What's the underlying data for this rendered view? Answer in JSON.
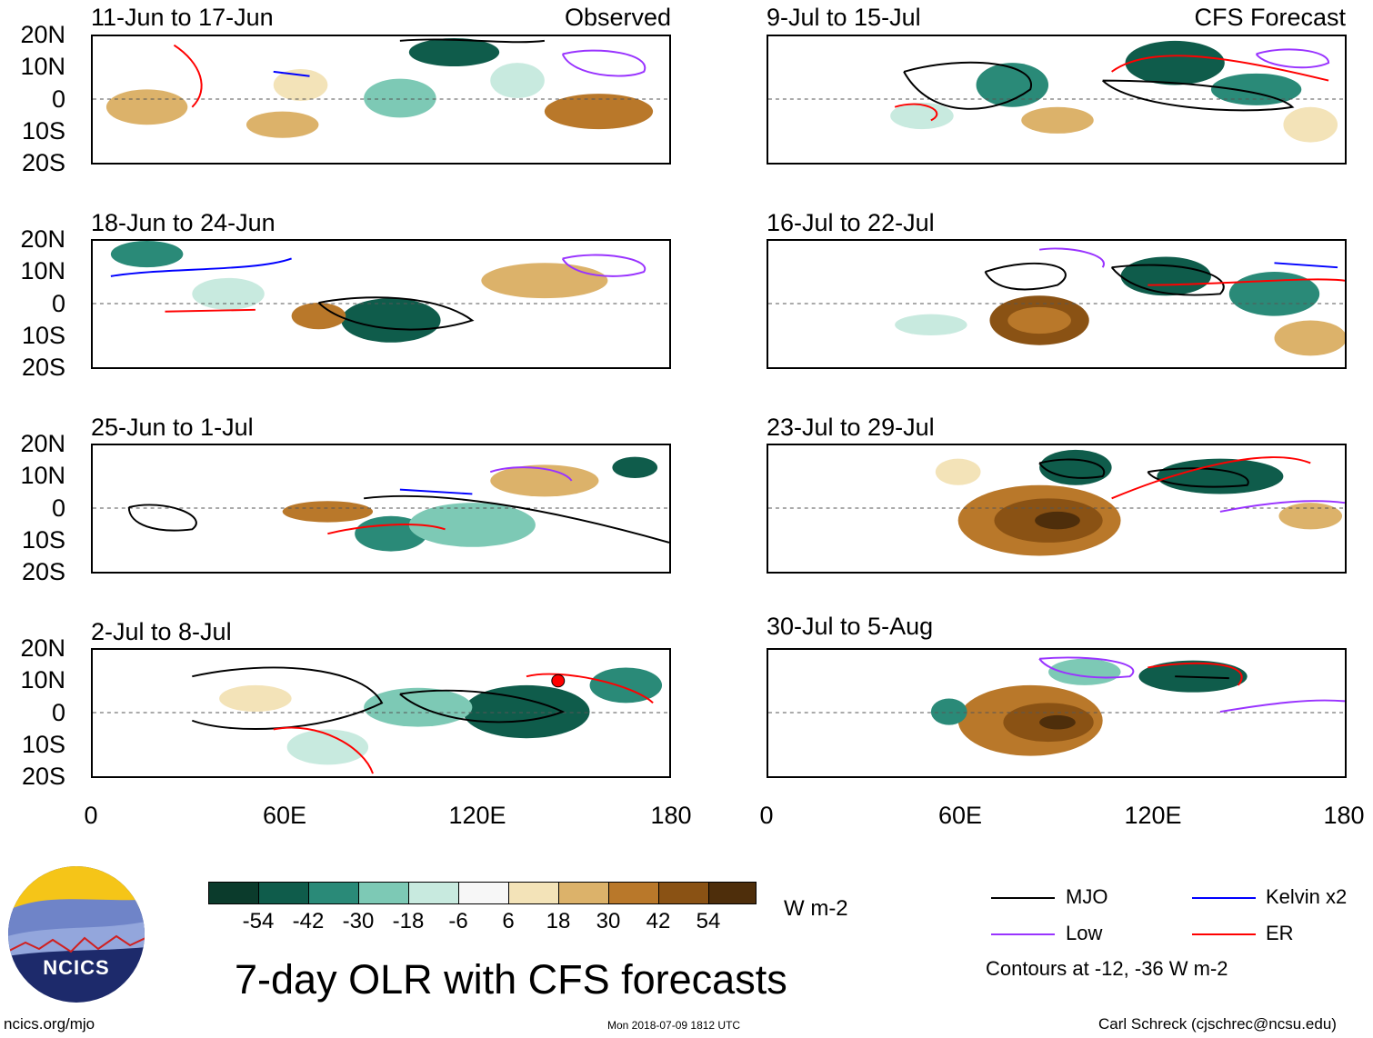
{
  "panels": [
    {
      "title": "11-Jun to 17-Jun",
      "tag": "Observed"
    },
    {
      "title": "9-Jul to 15-Jul",
      "tag": "CFS Forecast"
    },
    {
      "title": "18-Jun to 24-Jun",
      "tag": ""
    },
    {
      "title": "16-Jul to 22-Jul",
      "tag": ""
    },
    {
      "title": "25-Jun to 1-Jul",
      "tag": ""
    },
    {
      "title": "23-Jul to 29-Jul",
      "tag": ""
    },
    {
      "title": "2-Jul to 8-Jul",
      "tag": ""
    },
    {
      "title": "30-Jul to 5-Aug",
      "tag": ""
    }
  ],
  "lat_labels": [
    "20N",
    "10N",
    "0",
    "10S",
    "20S"
  ],
  "lon_labels": [
    "0",
    "60E",
    "120E",
    "180"
  ],
  "colorbar": {
    "unit": "W m-2",
    "ticks": [
      "-54",
      "-42",
      "-30",
      "-18",
      "-6",
      "6",
      "18",
      "30",
      "42",
      "54"
    ],
    "colors": [
      "#0b3b2c",
      "#0f5c4b",
      "#2a8a78",
      "#7dc9b5",
      "#c8eadf",
      "#f7f7f7",
      "#f3e3b8",
      "#dcb26a",
      "#b9782a",
      "#8a5214",
      "#4e2e0b"
    ]
  },
  "legend": {
    "items": [
      {
        "label": "MJO",
        "color": "#000000"
      },
      {
        "label": "Kelvin x2",
        "color": "#0000ff"
      },
      {
        "label": "Low",
        "color": "#9933ff"
      },
      {
        "label": "ER",
        "color": "#ff0000"
      }
    ],
    "note": "Contours at -12, -36 W m-2"
  },
  "logo": {
    "text": "NCICS"
  },
  "title": "7-day OLR with CFS forecasts",
  "footer": {
    "left": "ncics.org/mjo",
    "center": "Mon 2018-07-09 1812 UTC",
    "right": "Carl Schreck (cjschrec@ncsu.edu)"
  }
}
